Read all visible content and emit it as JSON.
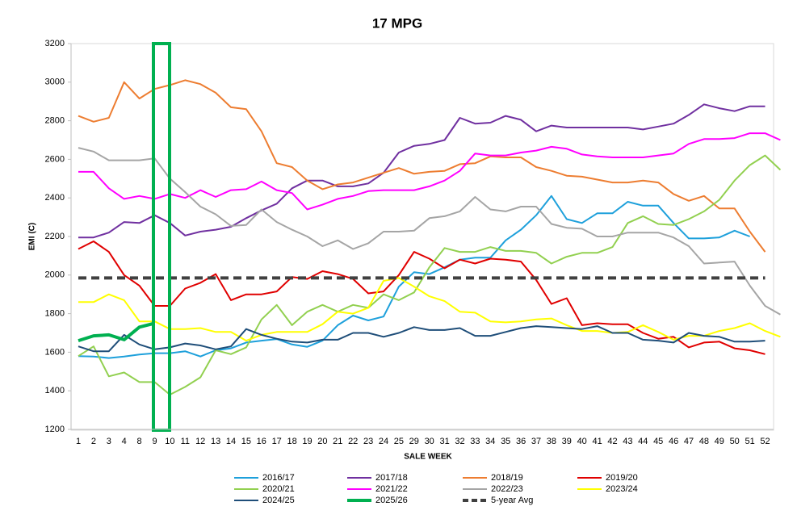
{
  "chart_data": {
    "type": "line",
    "title": "17 MPG",
    "y_label": "EMI (C)",
    "x_label": "SALE WEEK",
    "categories": [
      "1",
      "2",
      "3",
      "4",
      "8",
      "9",
      "10",
      "11",
      "12",
      "13",
      "14",
      "15",
      "16",
      "17",
      "18",
      "19",
      "20",
      "21",
      "22",
      "23",
      "24",
      "25",
      "29",
      "30",
      "31",
      "32",
      "33",
      "34",
      "35",
      "36",
      "37",
      "38",
      "39",
      "40",
      "41",
      "42",
      "43",
      "44",
      "45",
      "46",
      "47",
      "48",
      "49",
      "50",
      "51",
      "52",
      null
    ],
    "ylim": [
      1200,
      3200
    ],
    "yticks": [
      1200,
      1400,
      1600,
      1800,
      2000,
      2200,
      2400,
      2600,
      2800,
      3000,
      3200
    ],
    "grid": false,
    "legend": "bottom",
    "series": [
      {
        "name": "2016/17",
        "color": "#1ea0db",
        "values": [
          1580,
          1578,
          1570,
          1578,
          1588,
          1595,
          1595,
          1605,
          1578,
          1610,
          1620,
          1650,
          1660,
          1668,
          1640,
          1628,
          1660,
          1740,
          1790,
          1765,
          1785,
          1940,
          2015,
          2005,
          2040,
          2080,
          2090,
          2090,
          2180,
          2235,
          2310,
          2410,
          2290,
          2270,
          2320,
          2320,
          2380,
          2360,
          2360,
          2270,
          2190,
          2190,
          2195,
          2230,
          2200,
          null,
          null
        ]
      },
      {
        "name": "2017/18",
        "color": "#7030a0",
        "values": [
          2195,
          2195,
          2220,
          2275,
          2270,
          2310,
          2270,
          2205,
          2225,
          2235,
          2250,
          2295,
          2335,
          2370,
          2450,
          2490,
          2490,
          2460,
          2460,
          2475,
          2530,
          2635,
          2670,
          2680,
          2700,
          2815,
          2785,
          2790,
          2825,
          2805,
          2745,
          2775,
          2765,
          2765,
          2765,
          2765,
          2765,
          2755,
          2770,
          2785,
          2830,
          2885,
          2865,
          2850,
          2875,
          2875,
          null
        ]
      },
      {
        "name": "2018/19",
        "color": "#ed7d31",
        "values": [
          2825,
          2795,
          2815,
          3000,
          2915,
          2965,
          2985,
          3010,
          2990,
          2945,
          2870,
          2860,
          2745,
          2580,
          2560,
          2490,
          2445,
          2470,
          2480,
          2505,
          2530,
          2555,
          2525,
          2535,
          2540,
          2575,
          2580,
          2615,
          2610,
          2610,
          2560,
          2540,
          2515,
          2510,
          2495,
          2480,
          2480,
          2490,
          2480,
          2420,
          2385,
          2410,
          2345,
          2345,
          2225,
          2120,
          null
        ]
      },
      {
        "name": "2019/20",
        "color": "#e00000",
        "values": [
          2135,
          2175,
          2120,
          2000,
          1945,
          1840,
          1840,
          1930,
          1960,
          2005,
          1870,
          1900,
          1900,
          1915,
          1990,
          1980,
          2020,
          2005,
          1980,
          1905,
          1915,
          2000,
          2120,
          2085,
          2035,
          2080,
          2060,
          2085,
          2080,
          2070,
          1975,
          1850,
          1880,
          1740,
          1750,
          1745,
          1745,
          1700,
          1670,
          1680,
          1625,
          1650,
          1655,
          1620,
          1610,
          1590,
          null
        ]
      },
      {
        "name": "2020/21",
        "color": "#92d050",
        "values": [
          1580,
          1630,
          1475,
          1495,
          1445,
          1445,
          1380,
          1420,
          1470,
          1610,
          1590,
          1625,
          1770,
          1845,
          1740,
          1810,
          1845,
          1810,
          1845,
          1830,
          1900,
          1870,
          1910,
          2040,
          2140,
          2120,
          2120,
          2145,
          2125,
          2125,
          2115,
          2060,
          2095,
          2115,
          2115,
          2145,
          2270,
          2305,
          2265,
          2260,
          2290,
          2330,
          2390,
          2490,
          2570,
          2620,
          2545
        ]
      },
      {
        "name": "2021/22",
        "color": "#ff00ff",
        "values": [
          2535,
          2535,
          2450,
          2395,
          2410,
          2395,
          2420,
          2400,
          2440,
          2405,
          2440,
          2445,
          2485,
          2440,
          2425,
          2340,
          2365,
          2395,
          2410,
          2435,
          2440,
          2440,
          2440,
          2460,
          2490,
          2540,
          2630,
          2620,
          2620,
          2635,
          2645,
          2665,
          2655,
          2625,
          2615,
          2610,
          2610,
          2610,
          2620,
          2630,
          2680,
          2705,
          2705,
          2710,
          2735,
          2735,
          2700
        ]
      },
      {
        "name": "2022/23",
        "color": "#a5a5a5",
        "values": [
          2660,
          2640,
          2595,
          2595,
          2595,
          2605,
          2500,
          2430,
          2355,
          2315,
          2255,
          2260,
          2340,
          2275,
          2235,
          2200,
          2150,
          2180,
          2135,
          2165,
          2225,
          2225,
          2230,
          2295,
          2305,
          2330,
          2405,
          2340,
          2330,
          2355,
          2355,
          2265,
          2245,
          2240,
          2200,
          2200,
          2220,
          2220,
          2220,
          2195,
          2150,
          2060,
          2065,
          2070,
          1945,
          1840,
          1795
        ]
      },
      {
        "name": "2023/24",
        "color": "#ffff00",
        "values": [
          1860,
          1860,
          1900,
          1870,
          1760,
          1760,
          1720,
          1720,
          1725,
          1705,
          1705,
          1660,
          1690,
          1705,
          1705,
          1705,
          1745,
          1810,
          1800,
          1830,
          1970,
          1985,
          1940,
          1890,
          1865,
          1810,
          1805,
          1760,
          1755,
          1760,
          1770,
          1775,
          1740,
          1710,
          1710,
          1700,
          1705,
          1740,
          1705,
          1665,
          1685,
          1685,
          1710,
          1725,
          1750,
          1710,
          1680
        ]
      },
      {
        "name": "2024/25",
        "color": "#1f4e79",
        "values": [
          1630,
          1605,
          1605,
          1690,
          1640,
          1615,
          1625,
          1645,
          1635,
          1615,
          1630,
          1720,
          1690,
          1670,
          1655,
          1650,
          1665,
          1665,
          1700,
          1700,
          1680,
          1700,
          1730,
          1715,
          1715,
          1725,
          1685,
          1685,
          1705,
          1725,
          1735,
          1730,
          1725,
          1720,
          1735,
          1700,
          1700,
          1665,
          1660,
          1650,
          1700,
          1685,
          1680,
          1655,
          1655,
          1660,
          null
        ]
      },
      {
        "name": "2025/26",
        "color": "#00b050",
        "width": 4,
        "values": [
          1660,
          1685,
          1690,
          1665,
          1730,
          1750,
          null,
          null,
          null,
          null,
          null,
          null,
          null,
          null,
          null,
          null,
          null,
          null,
          null,
          null,
          null,
          null,
          null,
          null,
          null,
          null,
          null,
          null,
          null,
          null,
          null,
          null,
          null,
          null,
          null,
          null,
          null,
          null,
          null,
          null,
          null,
          null,
          null,
          null,
          null,
          null,
          null
        ]
      },
      {
        "name": "5-year Avg",
        "color": "#404040",
        "width": 4,
        "dash": true,
        "values": [
          1985,
          1985,
          1985,
          1985,
          1985,
          1985,
          1985,
          1985,
          1985,
          1985,
          1985,
          1985,
          1985,
          1985,
          1985,
          1985,
          1985,
          1985,
          1985,
          1985,
          1985,
          1985,
          1985,
          1985,
          1985,
          1985,
          1985,
          1985,
          1985,
          1985,
          1985,
          1985,
          1985,
          1985,
          1985,
          1985,
          1985,
          1985,
          1985,
          1985,
          1985,
          1985,
          1985,
          1985,
          1985,
          1985,
          null
        ]
      }
    ]
  }
}
